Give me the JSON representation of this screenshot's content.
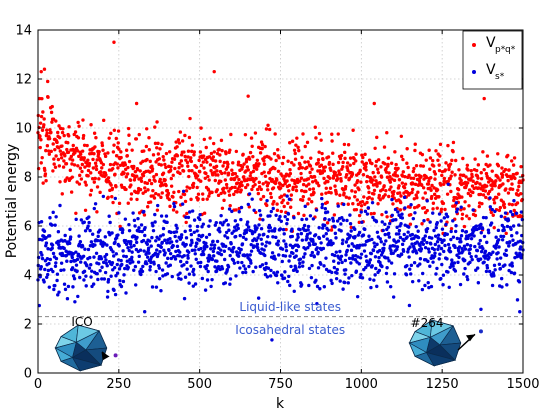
{
  "chart_data": {
    "type": "scatter",
    "xlabel": "k",
    "ylabel": "Potential energy",
    "xlim": [
      0,
      1500
    ],
    "ylim": [
      0,
      14
    ],
    "x_ticks": [
      0,
      250,
      500,
      750,
      1000,
      1250,
      1500
    ],
    "y_ticks": [
      0,
      2,
      4,
      6,
      8,
      10,
      12,
      14
    ],
    "grid": true,
    "legend_position": "top-right",
    "series": [
      {
        "name": "V_{p_k* q_k*}",
        "color": "#ff0000",
        "n_points": 1500,
        "trend": [
          [
            0,
            9.3
          ],
          [
            100,
            8.8
          ],
          [
            250,
            8.3
          ],
          [
            500,
            8.1
          ],
          [
            750,
            8.0
          ],
          [
            1000,
            7.8
          ],
          [
            1250,
            7.6
          ],
          [
            1500,
            7.5
          ]
        ],
        "spread": 0.75,
        "extremes": [
          [
            5,
            11.2
          ],
          [
            10,
            12.3
          ],
          [
            20,
            12.4
          ],
          [
            30,
            11.9
          ],
          [
            235,
            13.5
          ],
          [
            305,
            11.0
          ],
          [
            545,
            12.3
          ],
          [
            650,
            11.3
          ],
          [
            1040,
            11.0
          ],
          [
            1380,
            11.2
          ]
        ]
      },
      {
        "name": "V_{s_k*}",
        "color": "#0000dd",
        "n_points": 1500,
        "trend": [
          [
            0,
            4.8
          ],
          [
            250,
            5.0
          ],
          [
            500,
            5.1
          ],
          [
            750,
            5.2
          ],
          [
            1000,
            5.1
          ],
          [
            1250,
            5.2
          ],
          [
            1500,
            5.1
          ]
        ],
        "spread": 0.8,
        "extremes": [
          [
            240,
            3.2
          ],
          [
            330,
            2.5
          ],
          [
            1370,
            2.6
          ],
          [
            1490,
            2.5
          ],
          [
            65,
            3.3
          ],
          [
            1100,
            3.1
          ]
        ]
      }
    ],
    "reference_line": {
      "y": 2.3,
      "style": "dashed",
      "color": "#888888"
    },
    "annotations": [
      {
        "text": "Liquid-like states",
        "x": 780,
        "y": 2.7
      },
      {
        "text": "Icosahedral states",
        "x": 780,
        "y": 1.75
      }
    ],
    "insets": [
      {
        "label": "ICO",
        "marker_x": 240,
        "marker_y": 0.72,
        "color": "#6a1bb8"
      },
      {
        "label": "#264",
        "marker_x": 1370,
        "marker_y": 1.7,
        "color": "#1a2cc7"
      }
    ]
  }
}
